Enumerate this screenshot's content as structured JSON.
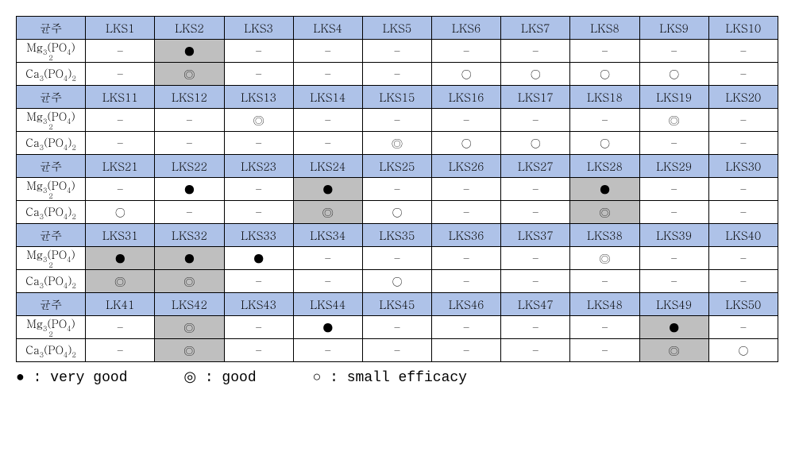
{
  "colors": {
    "header_bg": "#aec2e8",
    "highlight_bg": "#bfbfbf",
    "cell_bg": "#ffffff",
    "border": "#000000"
  },
  "symbols": {
    "very_good": "●",
    "good": "◎",
    "small": "○",
    "none": "–"
  },
  "legend": {
    "very_good_sym": "●",
    "very_good_txt": " : very good",
    "good_sym": "◎",
    "good_txt": " : good",
    "small_sym": "○",
    "small_txt": " : small efficacy"
  },
  "row_headers": {
    "strain": "균주",
    "mg": "Mg₃(PO₄)",
    "mg_sub": "2",
    "ca": "Ca₃(PO₄)₂"
  },
  "blocks": [
    {
      "cols": [
        "LKS1",
        "LKS2",
        "LKS3",
        "LKS4",
        "LKS5",
        "LKS6",
        "LKS7",
        "LKS8",
        "LKS9",
        "LKS10"
      ],
      "mg": [
        {
          "v": "–"
        },
        {
          "v": "●",
          "hl": true
        },
        {
          "v": "–"
        },
        {
          "v": "–"
        },
        {
          "v": "–"
        },
        {
          "v": "–"
        },
        {
          "v": "–"
        },
        {
          "v": "–"
        },
        {
          "v": "–"
        },
        {
          "v": "–"
        }
      ],
      "ca": [
        {
          "v": "–"
        },
        {
          "v": "◎",
          "hl": true
        },
        {
          "v": "–"
        },
        {
          "v": "–"
        },
        {
          "v": "–"
        },
        {
          "v": "○"
        },
        {
          "v": "○"
        },
        {
          "v": "○"
        },
        {
          "v": "○"
        },
        {
          "v": "–"
        }
      ]
    },
    {
      "cols": [
        "LKS11",
        "LKS12",
        "LKS13",
        "LKS14",
        "LKS15",
        "LKS16",
        "LKS17",
        "LKS18",
        "LKS19",
        "LKS20"
      ],
      "mg": [
        {
          "v": "–"
        },
        {
          "v": "–"
        },
        {
          "v": "◎"
        },
        {
          "v": "–"
        },
        {
          "v": "–"
        },
        {
          "v": "–"
        },
        {
          "v": "–"
        },
        {
          "v": "–"
        },
        {
          "v": "◎"
        },
        {
          "v": "–"
        }
      ],
      "ca": [
        {
          "v": "–"
        },
        {
          "v": "–"
        },
        {
          "v": "–"
        },
        {
          "v": "–"
        },
        {
          "v": "◎"
        },
        {
          "v": "○"
        },
        {
          "v": "○"
        },
        {
          "v": "○"
        },
        {
          "v": "–"
        },
        {
          "v": "–"
        }
      ]
    },
    {
      "cols": [
        "LKS21",
        "LKS22",
        "LKS23",
        "LKS24",
        "LKS25",
        "LKS26",
        "LKS27",
        "LKS28",
        "LKS29",
        "LKS30"
      ],
      "mg": [
        {
          "v": "–"
        },
        {
          "v": "●"
        },
        {
          "v": "–"
        },
        {
          "v": "●",
          "hl": true
        },
        {
          "v": "–"
        },
        {
          "v": "–"
        },
        {
          "v": "–"
        },
        {
          "v": "●",
          "hl": true
        },
        {
          "v": "–"
        },
        {
          "v": "–"
        }
      ],
      "ca": [
        {
          "v": "○"
        },
        {
          "v": "–"
        },
        {
          "v": "–"
        },
        {
          "v": "◎",
          "hl": true
        },
        {
          "v": "○"
        },
        {
          "v": "–"
        },
        {
          "v": "–"
        },
        {
          "v": "◎",
          "hl": true
        },
        {
          "v": "–"
        },
        {
          "v": "–"
        }
      ]
    },
    {
      "cols": [
        "LKS31",
        "LKS32",
        "LKS33",
        "LKS34",
        "LKS35",
        "LKS36",
        "LKS37",
        "LKS38",
        "LKS39",
        "LKS40"
      ],
      "mg": [
        {
          "v": "●",
          "hl": true
        },
        {
          "v": "●",
          "hl": true
        },
        {
          "v": "●"
        },
        {
          "v": "–"
        },
        {
          "v": "–"
        },
        {
          "v": "–"
        },
        {
          "v": "–"
        },
        {
          "v": "◎"
        },
        {
          "v": "–"
        },
        {
          "v": "–"
        }
      ],
      "ca": [
        {
          "v": "◎",
          "hl": true
        },
        {
          "v": "◎",
          "hl": true
        },
        {
          "v": "–"
        },
        {
          "v": "–"
        },
        {
          "v": "○"
        },
        {
          "v": "–"
        },
        {
          "v": "–"
        },
        {
          "v": "–"
        },
        {
          "v": "–"
        },
        {
          "v": "–"
        }
      ]
    },
    {
      "cols": [
        "LK41",
        "LKS42",
        "LKS43",
        "LKS44",
        "LKS45",
        "LKS46",
        "LKS47",
        "LKS48",
        "LKS49",
        "LKS50"
      ],
      "mg": [
        {
          "v": "–"
        },
        {
          "v": "◎",
          "hl": true
        },
        {
          "v": "–"
        },
        {
          "v": "●"
        },
        {
          "v": "–"
        },
        {
          "v": "–"
        },
        {
          "v": "–"
        },
        {
          "v": "–"
        },
        {
          "v": "●",
          "hl": true
        },
        {
          "v": "–"
        }
      ],
      "ca": [
        {
          "v": "–"
        },
        {
          "v": "◎",
          "hl": true
        },
        {
          "v": "–"
        },
        {
          "v": "–"
        },
        {
          "v": "–"
        },
        {
          "v": "–"
        },
        {
          "v": "–"
        },
        {
          "v": "–"
        },
        {
          "v": "◎",
          "hl": true
        },
        {
          "v": "○"
        }
      ]
    }
  ]
}
